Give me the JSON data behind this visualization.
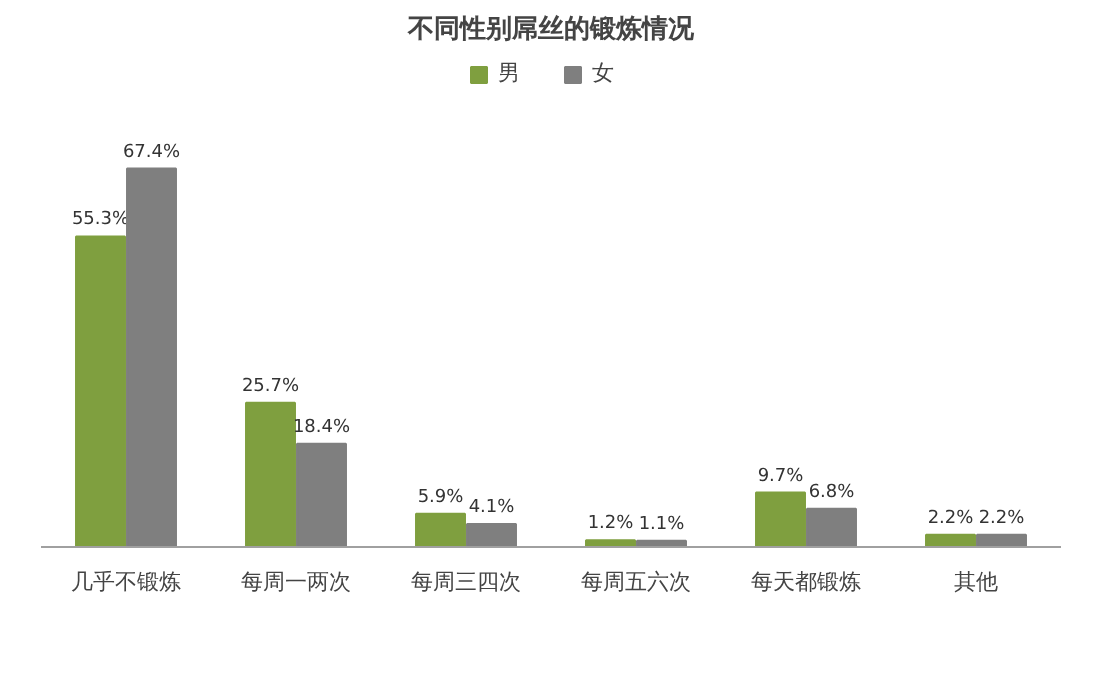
{
  "chart_data": {
    "type": "bar",
    "title": "不同性别屌丝的锻炼情况",
    "categories": [
      "几乎不锻炼",
      "每周一两次",
      "每周三四次",
      "每周五六次",
      "每天都锻炼",
      "其他"
    ],
    "series": [
      {
        "name": "男",
        "color": "#7f9f3f",
        "values": [
          55.3,
          25.7,
          5.9,
          1.2,
          9.7,
          2.2
        ],
        "value_labels": [
          "55.3%",
          "25.7%",
          "5.9%",
          "1.2%",
          "9.7%",
          "2.2%"
        ]
      },
      {
        "name": "女",
        "color": "#7f7f7f",
        "values": [
          67.4,
          18.4,
          4.1,
          1.1,
          6.8,
          2.2
        ],
        "value_labels": [
          "67.4%",
          "18.4%",
          "4.1%",
          "1.1%",
          "6.8%",
          "2.2%"
        ]
      }
    ],
    "legend": "top"
  }
}
